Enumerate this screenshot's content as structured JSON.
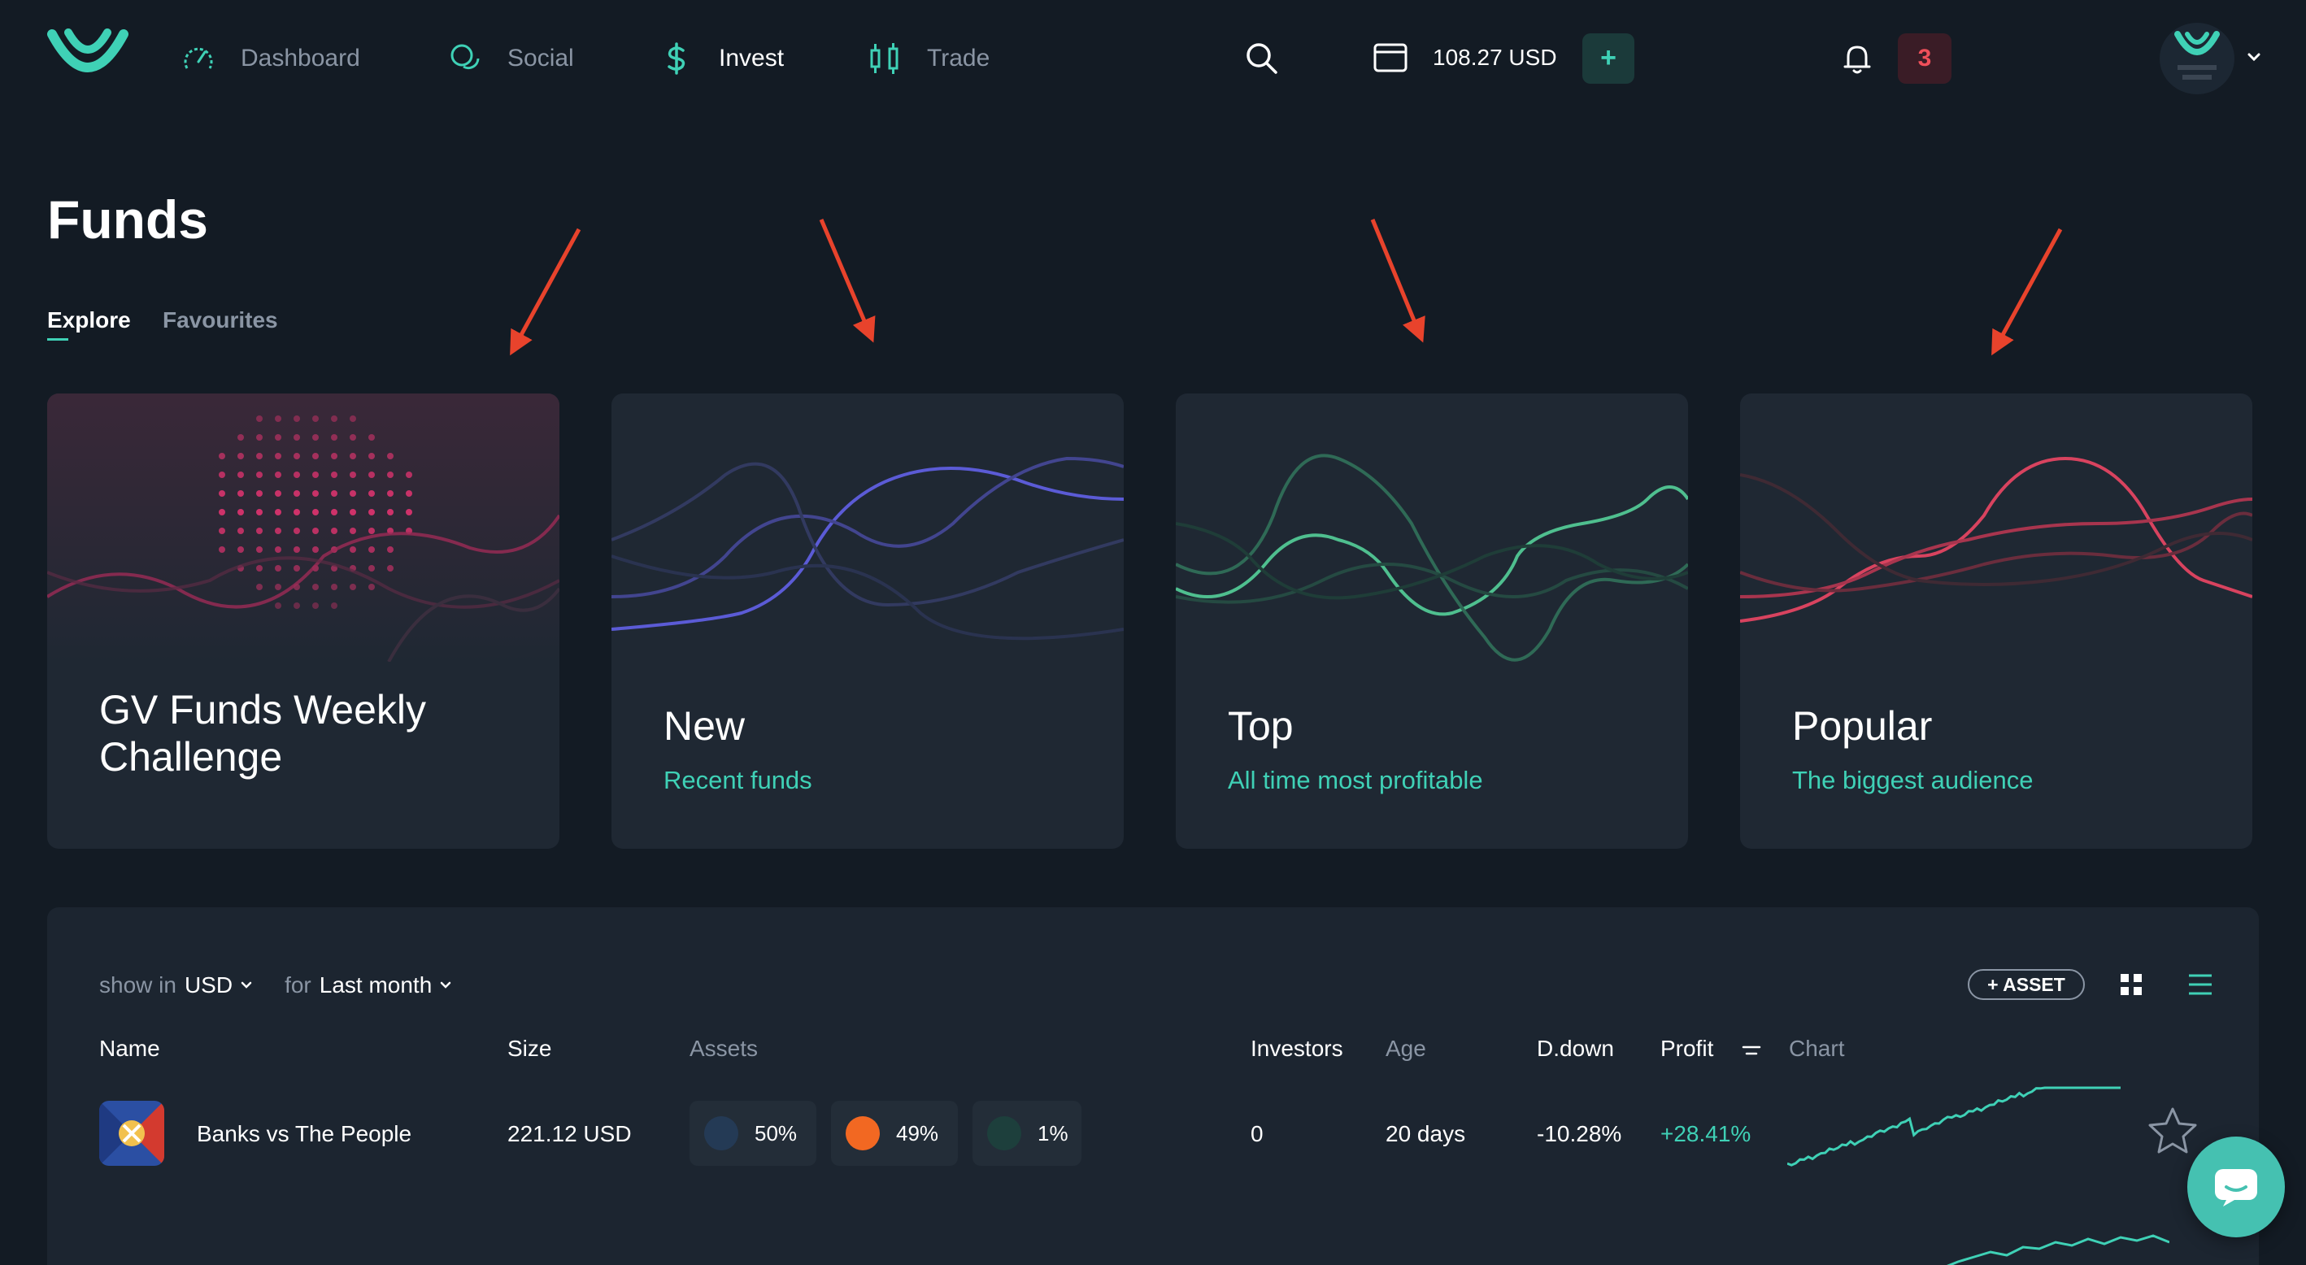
{
  "header": {
    "nav": [
      {
        "label": "Dashboard",
        "icon": "dashboard-gauge-icon",
        "active": false
      },
      {
        "label": "Social",
        "icon": "chat-bubbles-icon",
        "active": false
      },
      {
        "label": "Invest",
        "icon": "dollar-icon",
        "active": true
      },
      {
        "label": "Trade",
        "icon": "candlestick-icon",
        "active": false
      }
    ],
    "balance": "108.27 USD",
    "add_label": "+",
    "notifications_count": "3"
  },
  "page": {
    "title": "Funds",
    "tabs": [
      {
        "label": "Explore",
        "active": true
      },
      {
        "label": "Favourites",
        "active": false
      }
    ]
  },
  "cards": [
    {
      "title": "GV Funds Weekly Challenge",
      "subtitle": "",
      "accent": "#d6336c"
    },
    {
      "title": "New",
      "subtitle": "Recent funds",
      "accent": "#5b5bd6"
    },
    {
      "title": "Top",
      "subtitle": "All time most profitable",
      "accent": "#4fbf8f"
    },
    {
      "title": "Popular",
      "subtitle": "The biggest audience",
      "accent": "#d8435f"
    }
  ],
  "table": {
    "show_in_label": "show in",
    "currency": "USD",
    "for_label": "for",
    "period": "Last month",
    "asset_button": "ASSET",
    "columns": {
      "name": "Name",
      "size": "Size",
      "assets": "Assets",
      "investors": "Investors",
      "age": "Age",
      "drawdown": "D.down",
      "profit": "Profit",
      "chart": "Chart"
    },
    "rows": [
      {
        "name": "Banks vs The People",
        "size": "221.12 USD",
        "assets": [
          {
            "percent": "50%",
            "color": "#2a5fa8"
          },
          {
            "percent": "49%",
            "color": "#f26822"
          },
          {
            "percent": "1%",
            "color": "#1d6b5e"
          }
        ],
        "investors": "0",
        "age": "20 days",
        "drawdown": "-10.28%",
        "profit": "+28.41%"
      }
    ]
  },
  "colors": {
    "background": "#131b24",
    "card": "#1f2833",
    "accent": "#3fd1b6",
    "danger": "#ef4f5a",
    "muted": "#8a95a4"
  }
}
